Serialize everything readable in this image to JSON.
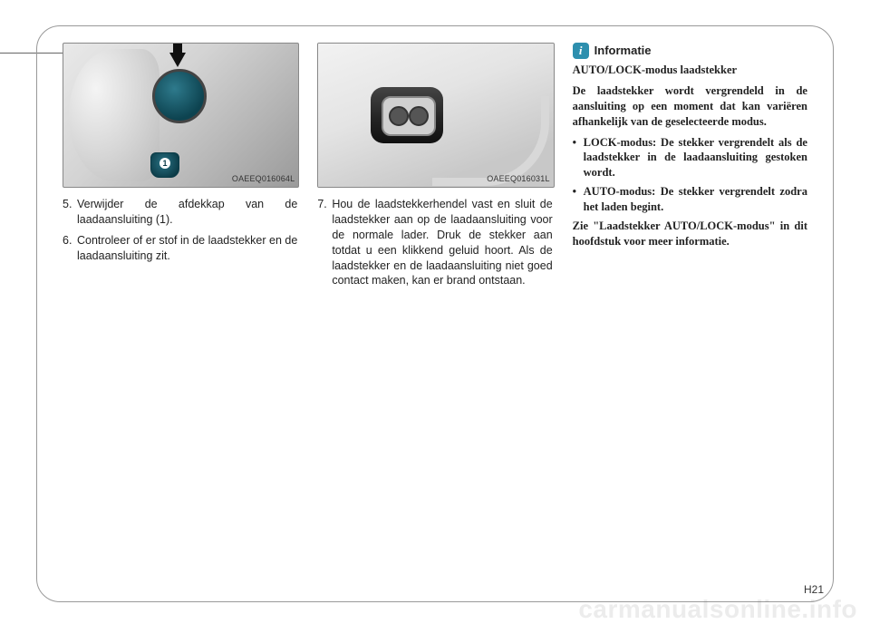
{
  "figure1": {
    "label": "OAEEQ016064L"
  },
  "figure2": {
    "label": "OAEEQ016031L"
  },
  "col1": {
    "item5_num": "5.",
    "item5_text": "Verwijder de afdekkap van de laadaansluiting (1).",
    "item6_num": "6.",
    "item6_text": "Controleer of er stof in de laadstekker en de laadaansluiting zit."
  },
  "col2": {
    "item7_num": "7.",
    "item7_text": "Hou de laadstekkerhendel vast en sluit de laadstekker aan op de laadaansluiting voor de normale lader. Druk de stekker aan totdat u een klikkend geluid hoort. Als de laadstekker en de laadaansluiting niet goed contact maken, kan er brand ontstaan."
  },
  "col3": {
    "info_icon": "i",
    "info_title": "Informatie",
    "sub_title": "AUTO/LOCK-modus laadstekker",
    "para1": "De laadstekker wordt vergrendeld in de aansluiting op een moment dat kan variëren afhankelijk van de geselecteerde modus.",
    "bullet1": "LOCK-modus: De stekker vergrendelt als de laadstekker in de laadaansluiting gestoken wordt.",
    "bullet2": "AUTO-modus: De stekker vergrendelt zodra het laden begint.",
    "para2": "Zie \"Laadstekker AUTO/LOCK-modus\" in dit hoofdstuk voor meer informatie."
  },
  "page": "H21",
  "watermark": "carmanualsonline.info"
}
